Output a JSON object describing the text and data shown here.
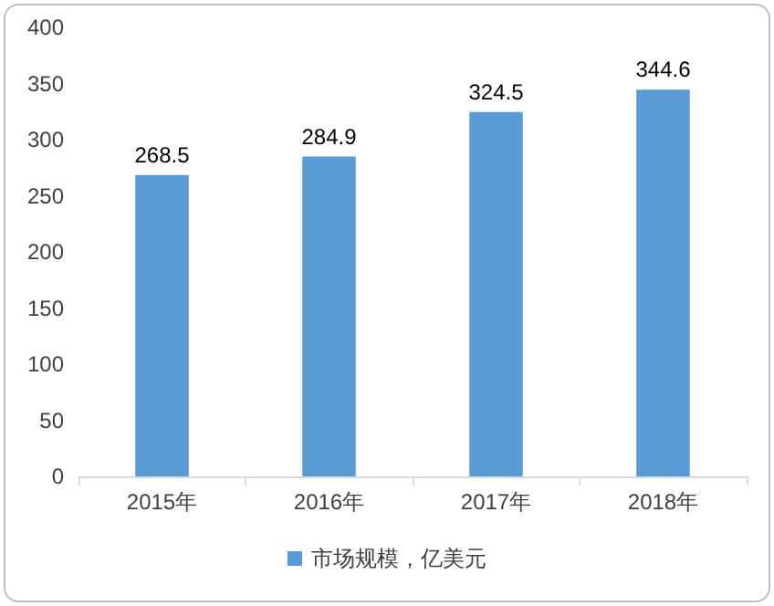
{
  "chart_data": {
    "type": "bar",
    "categories": [
      "2015年",
      "2016年",
      "2017年",
      "2018年"
    ],
    "series": [
      {
        "name": "市场规模，亿美元",
        "color": "#5b9bd5",
        "values": [
          268.5,
          284.9,
          324.5,
          344.6
        ]
      }
    ],
    "ylim": [
      0,
      400
    ],
    "yticks": [
      0,
      50,
      100,
      150,
      200,
      250,
      300,
      350,
      400
    ],
    "grid": false,
    "legend": "bottom",
    "data_labels": true
  }
}
